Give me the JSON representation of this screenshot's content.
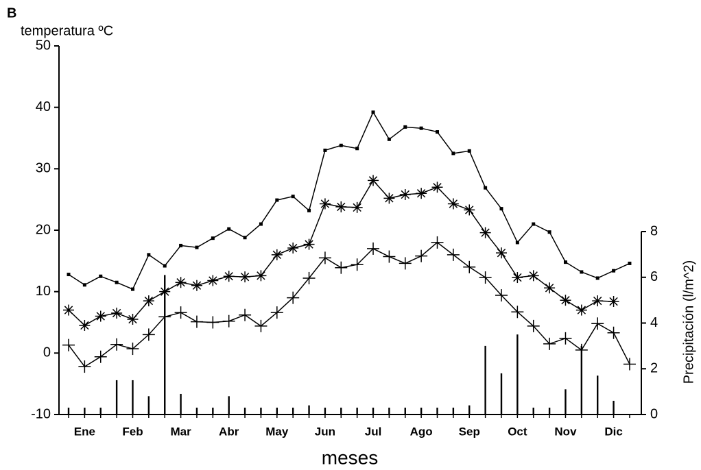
{
  "chart_data": {
    "type": "line",
    "panel_label": "B",
    "ylabel": "temperatura ºC",
    "xlabel": "meses",
    "y2label": "Precipitación (l/m^2)",
    "categories": [
      null,
      "Ene",
      null,
      null,
      "Feb",
      null,
      null,
      "Mar",
      null,
      null,
      "Abr",
      null,
      null,
      "May",
      null,
      null,
      "Jun",
      null,
      null,
      "Jul",
      null,
      null,
      "Ago",
      null,
      null,
      "Sep",
      null,
      null,
      "Oct",
      null,
      null,
      "Nov",
      null,
      null,
      "Dic",
      null
    ],
    "ylim": [
      -10,
      50
    ],
    "yticks": [
      -10,
      0,
      10,
      20,
      30,
      40,
      50
    ],
    "y2lim": [
      0,
      8
    ],
    "y2ticks": [
      0,
      2,
      4,
      6,
      8
    ],
    "grid": false,
    "series": [
      {
        "color": "#000000",
        "marker": "dot",
        "values": [
          12.8,
          11.1,
          12.5,
          11.5,
          10.4,
          16.0,
          14.2,
          17.5,
          17.2,
          18.7,
          20.2,
          18.8,
          21.0,
          24.9,
          25.5,
          23.2,
          33.0,
          33.8,
          33.3,
          39.2,
          34.8,
          36.8,
          36.6,
          36.0,
          32.5,
          32.9,
          26.9,
          23.5,
          18.0,
          21.0,
          19.7,
          14.8,
          13.2,
          12.2,
          13.4,
          14.6
        ]
      },
      {
        "color": "#000000",
        "marker": "asterisk",
        "values": [
          7.0,
          4.5,
          6.0,
          6.5,
          5.5,
          8.5,
          10.0,
          11.5,
          11.0,
          11.8,
          12.5,
          12.4,
          12.6,
          16.0,
          17.1,
          17.7,
          24.3,
          23.8,
          23.7,
          28.1,
          25.2,
          25.8,
          26.0,
          27.0,
          24.3,
          23.3,
          19.6,
          16.3,
          12.3,
          12.6,
          10.6,
          8.6,
          7.0,
          8.5,
          8.4,
          null
        ]
      },
      {
        "color": "#000000",
        "marker": "plus",
        "values": [
          1.3,
          -2.2,
          -0.6,
          1.4,
          0.7,
          3.0,
          5.9,
          6.6,
          5.1,
          5.0,
          5.2,
          6.2,
          4.4,
          6.6,
          9.0,
          12.2,
          15.5,
          13.9,
          14.4,
          17.0,
          15.7,
          14.6,
          15.8,
          18.0,
          16.0,
          14.0,
          12.3,
          9.4,
          6.7,
          4.4,
          1.5,
          2.4,
          0.5,
          4.8,
          3.3,
          -1.8
        ]
      },
      {
        "color": "#000000",
        "type": "bar",
        "axis": "y2",
        "values": [
          0.3,
          0.3,
          0.3,
          1.5,
          1.5,
          0.8,
          6.1,
          0.9,
          0.3,
          0.3,
          0.8,
          0.3,
          0.3,
          0.3,
          0.3,
          0.4,
          0.3,
          0.3,
          0.3,
          0.3,
          0.3,
          0.3,
          0.3,
          0.3,
          0.3,
          0.4,
          3.0,
          1.8,
          3.5,
          0.3,
          0.3,
          1.1,
          3.0,
          1.7,
          0.6,
          null
        ]
      }
    ]
  }
}
